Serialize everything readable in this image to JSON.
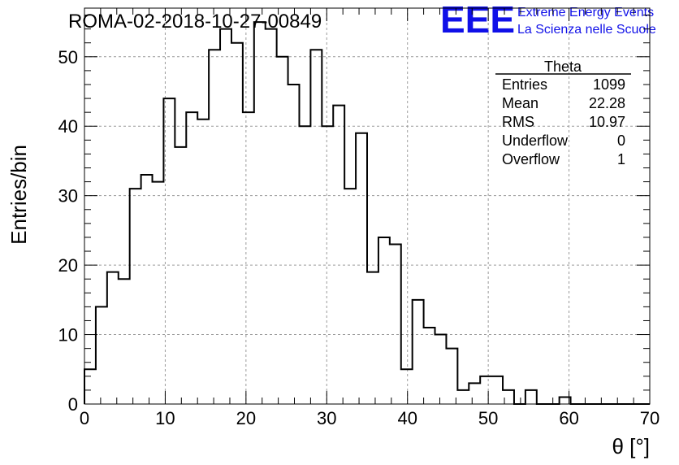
{
  "chart_data": {
    "type": "histogram",
    "title": "ROMA-02-2018-10-27-00849",
    "xlabel": "θ [°]",
    "ylabel": "Entries/bin",
    "xlim": [
      0,
      70
    ],
    "ylim": [
      0,
      57
    ],
    "x_ticks": [
      0,
      10,
      20,
      30,
      40,
      50,
      60,
      70
    ],
    "y_ticks": [
      0,
      10,
      20,
      30,
      40,
      50
    ],
    "grid": true,
    "bin_width": 1.4,
    "bin_edges_start": 0,
    "values": [
      5,
      14,
      19,
      18,
      31,
      33,
      32,
      44,
      37,
      42,
      41,
      51,
      54,
      52,
      42,
      55,
      54,
      50,
      46,
      40,
      51,
      40,
      43,
      31,
      39,
      19,
      24,
      23,
      5,
      15,
      11,
      10,
      8,
      2,
      3,
      4,
      4,
      2,
      0,
      2,
      0,
      0,
      1,
      0,
      0,
      0,
      0,
      0,
      0,
      0
    ],
    "stats": {
      "name": "Theta",
      "rows": [
        {
          "label": "Entries",
          "value": "1099"
        },
        {
          "label": "Mean",
          "value": "22.28"
        },
        {
          "label": "RMS",
          "value": "10.97"
        },
        {
          "label": "Underflow",
          "value": "0"
        },
        {
          "label": "Overflow",
          "value": "1"
        }
      ]
    }
  },
  "logo": {
    "mark": "EEE",
    "line1": "Extreme Energy Events",
    "line2": "La Scienza nelle Scuole"
  },
  "colors": {
    "logo": "#1010e8",
    "grid": "#9a9a9a",
    "line": "#000000"
  }
}
